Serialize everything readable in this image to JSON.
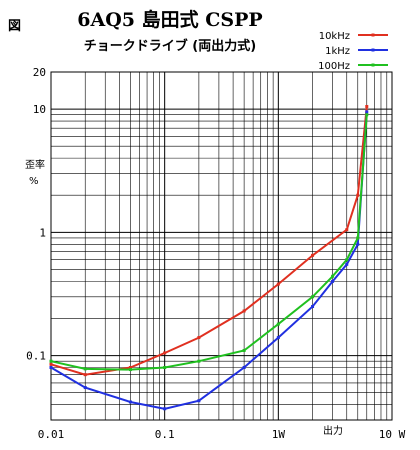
{
  "figure_label": "図",
  "title": "6AQ5 島田式 CSPP",
  "subtitle": "チョークドライブ (両出力式)",
  "chart_data": {
    "type": "line",
    "title": "6AQ5 島田式 CSPP",
    "subtitle": "チョークドライブ (両出力式)",
    "xlabel": "出力",
    "ylabel": "歪率\n%",
    "xscale": "log",
    "yscale": "log",
    "xlim": [
      0.01,
      10
    ],
    "ylim": [
      0.03,
      20
    ],
    "grid": true,
    "legend_position": "top-right",
    "x_tick_labels": [
      {
        "value": 0.01,
        "label": "0.01"
      },
      {
        "value": 0.1,
        "label": "0.1"
      },
      {
        "value": 1,
        "label": "1W"
      },
      {
        "value": 10,
        "label": "10 W"
      }
    ],
    "y_tick_labels": [
      {
        "value": 0.1,
        "label": "0.1"
      },
      {
        "value": 1,
        "label": "1"
      },
      {
        "value": 10,
        "label": "10"
      },
      {
        "value": 20,
        "label": "20"
      }
    ],
    "series": [
      {
        "name": "10kHz",
        "color": "#e03020",
        "x": [
          0.01,
          0.02,
          0.05,
          0.1,
          0.2,
          0.5,
          1,
          2,
          4,
          5,
          6
        ],
        "y": [
          0.085,
          0.07,
          0.08,
          0.105,
          0.14,
          0.23,
          0.38,
          0.65,
          1.05,
          2.0,
          10.5
        ]
      },
      {
        "name": "1kHz",
        "color": "#2030e0",
        "x": [
          0.01,
          0.02,
          0.05,
          0.1,
          0.2,
          0.5,
          1,
          2,
          3,
          4,
          5,
          6
        ],
        "y": [
          0.08,
          0.055,
          0.042,
          0.037,
          0.043,
          0.08,
          0.14,
          0.25,
          0.4,
          0.55,
          0.8,
          9.5
        ]
      },
      {
        "name": "100Hz",
        "color": "#20c020",
        "x": [
          0.01,
          0.02,
          0.05,
          0.1,
          0.2,
          0.5,
          1,
          2,
          3,
          4,
          5,
          6
        ],
        "y": [
          0.09,
          0.078,
          0.077,
          0.08,
          0.09,
          0.11,
          0.18,
          0.3,
          0.44,
          0.6,
          0.9,
          9.0
        ]
      }
    ]
  }
}
